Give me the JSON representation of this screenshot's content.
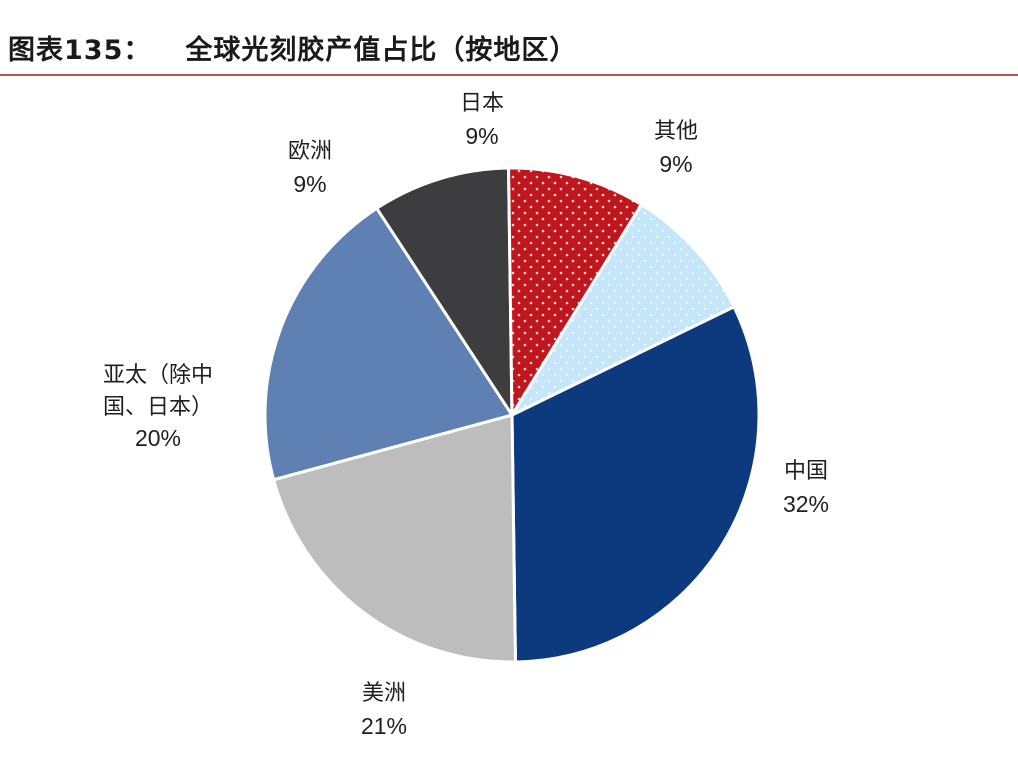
{
  "header": {
    "figure_number": "图表135：",
    "title_text": "全球光刻胶产值占比（按地区）"
  },
  "chart_data": {
    "type": "pie",
    "title": "全球光刻胶产值占比（按地区）",
    "unit": "%",
    "slices": [
      {
        "label": "中国",
        "value": 32,
        "value_text": "32%",
        "color": "#0d3a7e",
        "pattern": "none"
      },
      {
        "label": "美洲",
        "value": 21,
        "value_text": "21%",
        "color": "#bdbdbd",
        "pattern": "none"
      },
      {
        "label": "亚太（除中国、日本）",
        "label_lines": [
          "亚太（除中",
          "国、日本）"
        ],
        "value": 20,
        "value_text": "20%",
        "color": "#5e80b3",
        "pattern": "none"
      },
      {
        "label": "欧洲",
        "value": 9,
        "value_text": "9%",
        "color": "#3d3d3f",
        "pattern": "none"
      },
      {
        "label": "日本",
        "value": 9,
        "value_text": "9%",
        "color": "#c0171f",
        "pattern": "white-dots"
      },
      {
        "label": "其他",
        "value": 9,
        "value_text": "9%",
        "color": "#c4e6f8",
        "pattern": "light-dots"
      }
    ],
    "start_angle_deg": 64,
    "direction": "clockwise"
  }
}
